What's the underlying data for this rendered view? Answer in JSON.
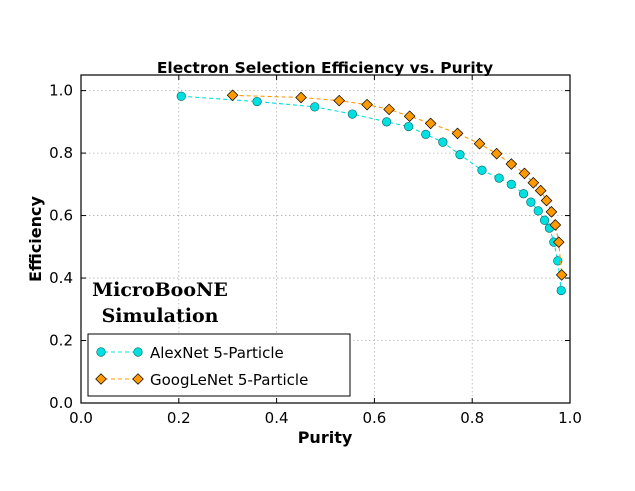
{
  "chart_data": {
    "type": "line",
    "title": "Electron Selection Efficiency vs. Purity",
    "xlabel": "Purity",
    "ylabel": "Efficiency",
    "xlim": [
      0.0,
      1.0
    ],
    "ylim": [
      0.0,
      1.05
    ],
    "xticks": [
      "0.0",
      "0.2",
      "0.4",
      "0.6",
      "0.8",
      "1.0"
    ],
    "xtick_values": [
      0.0,
      0.2,
      0.4,
      0.6,
      0.8,
      1.0
    ],
    "yticks": [
      "0.0",
      "0.2",
      "0.4",
      "0.6",
      "0.8",
      "1.0"
    ],
    "ytick_values": [
      0.0,
      0.2,
      0.4,
      0.6,
      0.8,
      1.0
    ],
    "grid": true,
    "legend_position": "bottom-left",
    "annotation": [
      "MicroBooNE",
      "Simulation"
    ],
    "series": [
      {
        "name": "AlexNet 5-Particle",
        "marker": "circle",
        "color": "#00e0e0",
        "x": [
          0.205,
          0.36,
          0.478,
          0.555,
          0.625,
          0.67,
          0.705,
          0.74,
          0.775,
          0.82,
          0.855,
          0.88,
          0.905,
          0.92,
          0.935,
          0.948,
          0.958,
          0.967,
          0.975,
          0.982
        ],
        "y": [
          0.982,
          0.965,
          0.948,
          0.925,
          0.9,
          0.885,
          0.86,
          0.835,
          0.795,
          0.745,
          0.72,
          0.7,
          0.67,
          0.643,
          0.615,
          0.585,
          0.56,
          0.515,
          0.455,
          0.36
        ]
      },
      {
        "name": "GoogLeNet 5-Particle",
        "marker": "diamond",
        "color": "#ff9900",
        "x": [
          0.31,
          0.45,
          0.528,
          0.585,
          0.63,
          0.672,
          0.715,
          0.77,
          0.815,
          0.85,
          0.88,
          0.907,
          0.925,
          0.94,
          0.952,
          0.962,
          0.97,
          0.977,
          0.983
        ],
        "y": [
          0.985,
          0.978,
          0.968,
          0.955,
          0.94,
          0.918,
          0.895,
          0.863,
          0.83,
          0.798,
          0.765,
          0.735,
          0.705,
          0.68,
          0.648,
          0.612,
          0.57,
          0.515,
          0.41
        ]
      }
    ]
  }
}
